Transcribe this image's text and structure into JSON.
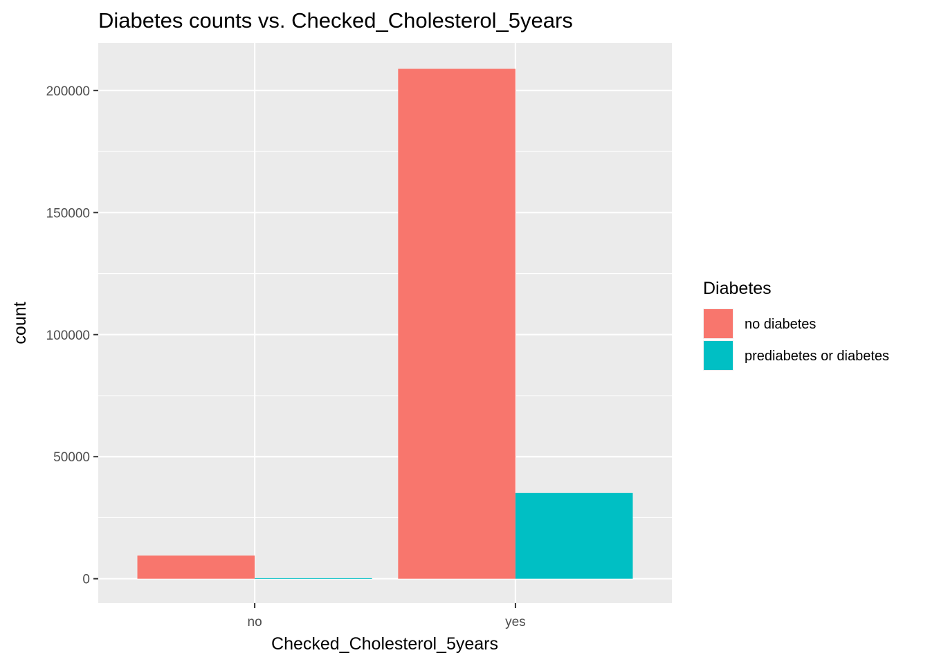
{
  "chart_data": {
    "type": "bar",
    "title": "Diabetes counts vs. Checked_Cholesterol_5years",
    "xlabel": "Checked_Cholesterol_5years",
    "ylabel": "count",
    "categories": [
      "no",
      "yes"
    ],
    "series": [
      {
        "name": "no diabetes",
        "color": "#F8766D",
        "values": [
          9470,
          208870
        ]
      },
      {
        "name": "prediabetes or diabetes",
        "color": "#00BFC4",
        "values": [
          241,
          35105
        ]
      }
    ],
    "ylim": [
      -10000,
      219500
    ],
    "yticks": [
      0,
      50000,
      100000,
      150000,
      200000
    ],
    "ytick_labels": [
      "0",
      "50000",
      "100000",
      "150000",
      "200000"
    ],
    "grid": true,
    "legend": {
      "title": "Diabetes",
      "position": "right"
    },
    "panel_color": "#EBEBEB",
    "grid_color": "#FFFFFF"
  }
}
